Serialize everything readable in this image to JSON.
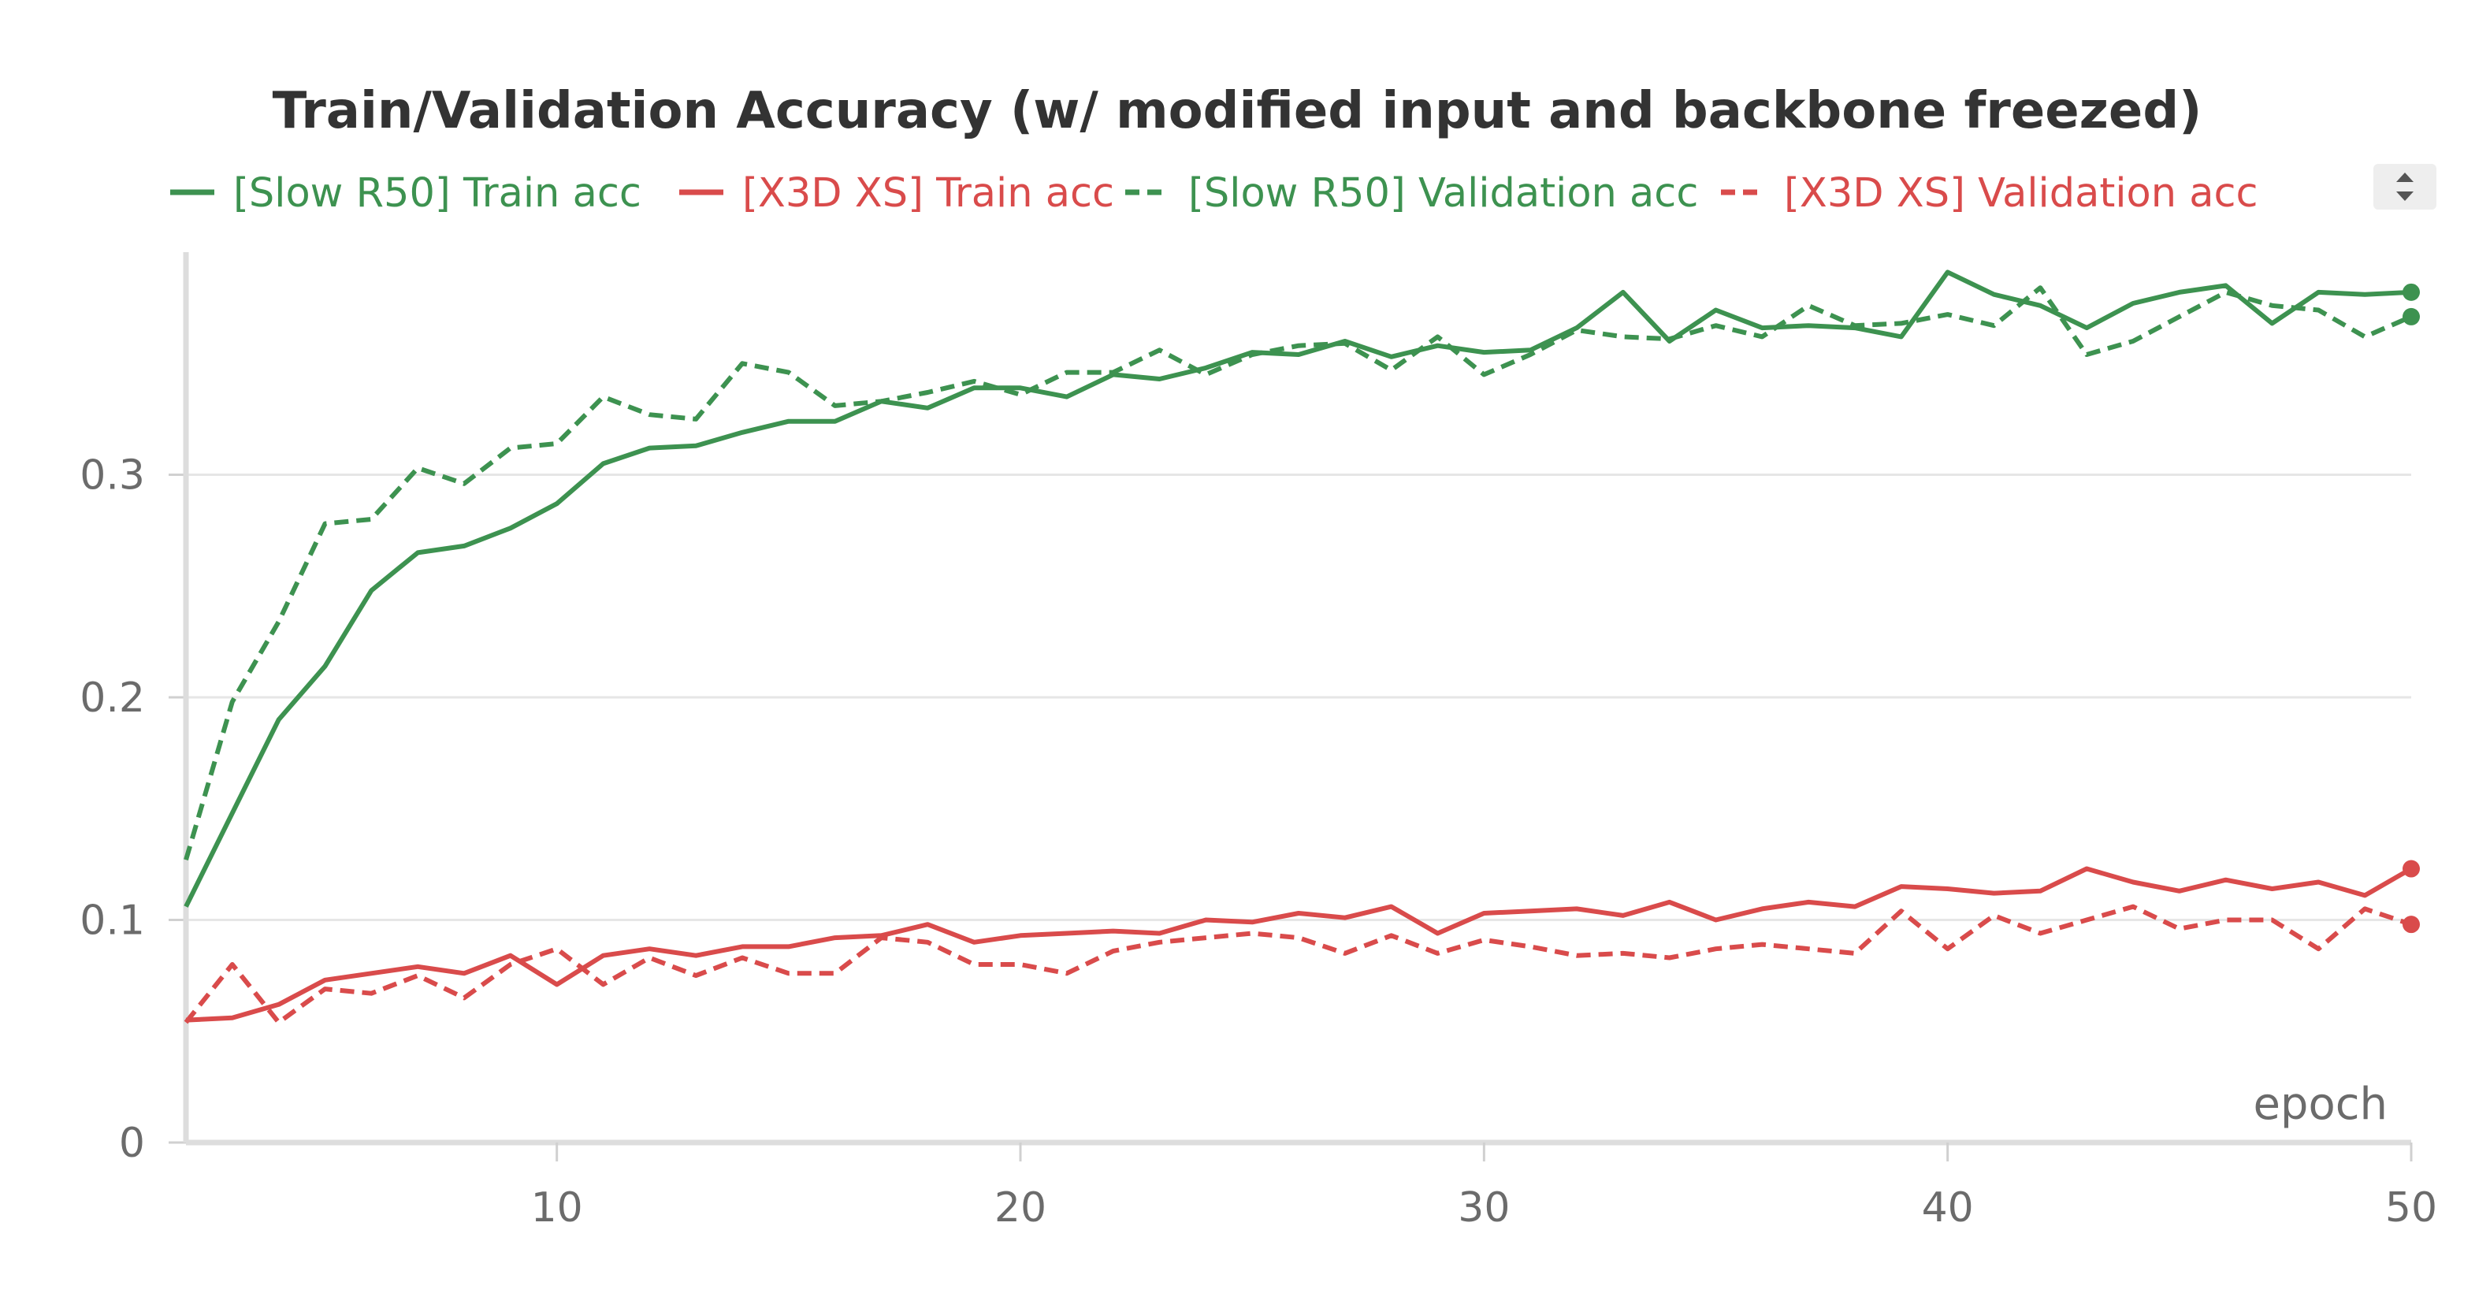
{
  "chart_data": {
    "type": "line",
    "title": "Train/Validation Accuracy (w/ modified input and backbone freezed)",
    "xlabel": "epoch",
    "ylabel": "",
    "xlim": [
      2,
      50
    ],
    "ylim": [
      0,
      0.4
    ],
    "x_ticks": [
      "10",
      "20",
      "30",
      "40",
      "50"
    ],
    "y_ticks": [
      "0",
      "0.1",
      "0.2",
      "0.3"
    ],
    "grid": "horizontal",
    "legend_position": "top",
    "x": [
      2,
      3,
      4,
      5,
      6,
      7,
      8,
      9,
      10,
      11,
      12,
      13,
      14,
      15,
      16,
      17,
      18,
      19,
      20,
      21,
      22,
      23,
      24,
      25,
      26,
      27,
      28,
      29,
      30,
      31,
      32,
      33,
      34,
      35,
      36,
      37,
      38,
      39,
      40,
      41,
      42,
      43,
      44,
      45,
      46,
      47,
      48,
      49,
      50
    ],
    "series": [
      {
        "name": "[Slow R50] Train acc",
        "color": "#3d9250",
        "dash": "solid",
        "values": [
          0.106,
          0.148,
          0.19,
          0.214,
          0.248,
          0.265,
          0.268,
          0.276,
          0.287,
          0.305,
          0.312,
          0.313,
          0.319,
          0.324,
          0.324,
          0.333,
          0.33,
          0.339,
          0.339,
          0.335,
          0.345,
          0.343,
          0.348,
          0.355,
          0.354,
          0.36,
          0.353,
          0.358,
          0.355,
          0.356,
          0.366,
          0.382,
          0.36,
          0.374,
          0.366,
          0.367,
          0.366,
          0.362,
          0.391,
          0.381,
          0.376,
          0.366,
          0.377,
          0.382,
          0.385,
          0.368,
          0.382,
          0.381,
          0.382
        ]
      },
      {
        "name": "[X3D XS] Train acc",
        "color": "#d94b4b",
        "dash": "solid",
        "values": [
          0.055,
          0.056,
          0.062,
          0.073,
          0.076,
          0.079,
          0.076,
          0.084,
          0.071,
          0.084,
          0.087,
          0.084,
          0.088,
          0.088,
          0.092,
          0.093,
          0.098,
          0.09,
          0.093,
          0.094,
          0.095,
          0.094,
          0.1,
          0.099,
          0.103,
          0.101,
          0.106,
          0.094,
          0.103,
          0.104,
          0.105,
          0.102,
          0.108,
          0.1,
          0.105,
          0.108,
          0.106,
          0.115,
          0.114,
          0.112,
          0.113,
          0.123,
          0.117,
          0.113,
          0.118,
          0.114,
          0.117,
          0.111,
          0.123
        ]
      },
      {
        "name": "[Slow R50] Validation acc",
        "color": "#3d9250",
        "dash": "dashed",
        "values": [
          0.127,
          0.198,
          0.234,
          0.278,
          0.28,
          0.303,
          0.296,
          0.312,
          0.314,
          0.335,
          0.327,
          0.325,
          0.35,
          0.346,
          0.331,
          0.333,
          0.337,
          0.342,
          0.336,
          0.346,
          0.346,
          0.356,
          0.345,
          0.354,
          0.358,
          0.359,
          0.347,
          0.362,
          0.345,
          0.354,
          0.365,
          0.362,
          0.361,
          0.367,
          0.362,
          0.376,
          0.367,
          0.368,
          0.372,
          0.367,
          0.384,
          0.354,
          0.36,
          0.371,
          0.382,
          0.376,
          0.374,
          0.362,
          0.371
        ]
      },
      {
        "name": "[X3D XS] Validation acc",
        "color": "#d94b4b",
        "dash": "dashed",
        "values": [
          0.054,
          0.08,
          0.054,
          0.069,
          0.067,
          0.075,
          0.065,
          0.08,
          0.087,
          0.071,
          0.083,
          0.075,
          0.083,
          0.076,
          0.076,
          0.092,
          0.09,
          0.08,
          0.08,
          0.076,
          0.086,
          0.09,
          0.092,
          0.094,
          0.092,
          0.085,
          0.093,
          0.085,
          0.091,
          0.088,
          0.084,
          0.085,
          0.083,
          0.087,
          0.089,
          0.087,
          0.085,
          0.104,
          0.087,
          0.102,
          0.094,
          0.1,
          0.106,
          0.096,
          0.1,
          0.1,
          0.087,
          0.105,
          0.098
        ]
      }
    ]
  },
  "ui": {
    "legend_scroll_icon": "up-down-arrows-icon"
  }
}
